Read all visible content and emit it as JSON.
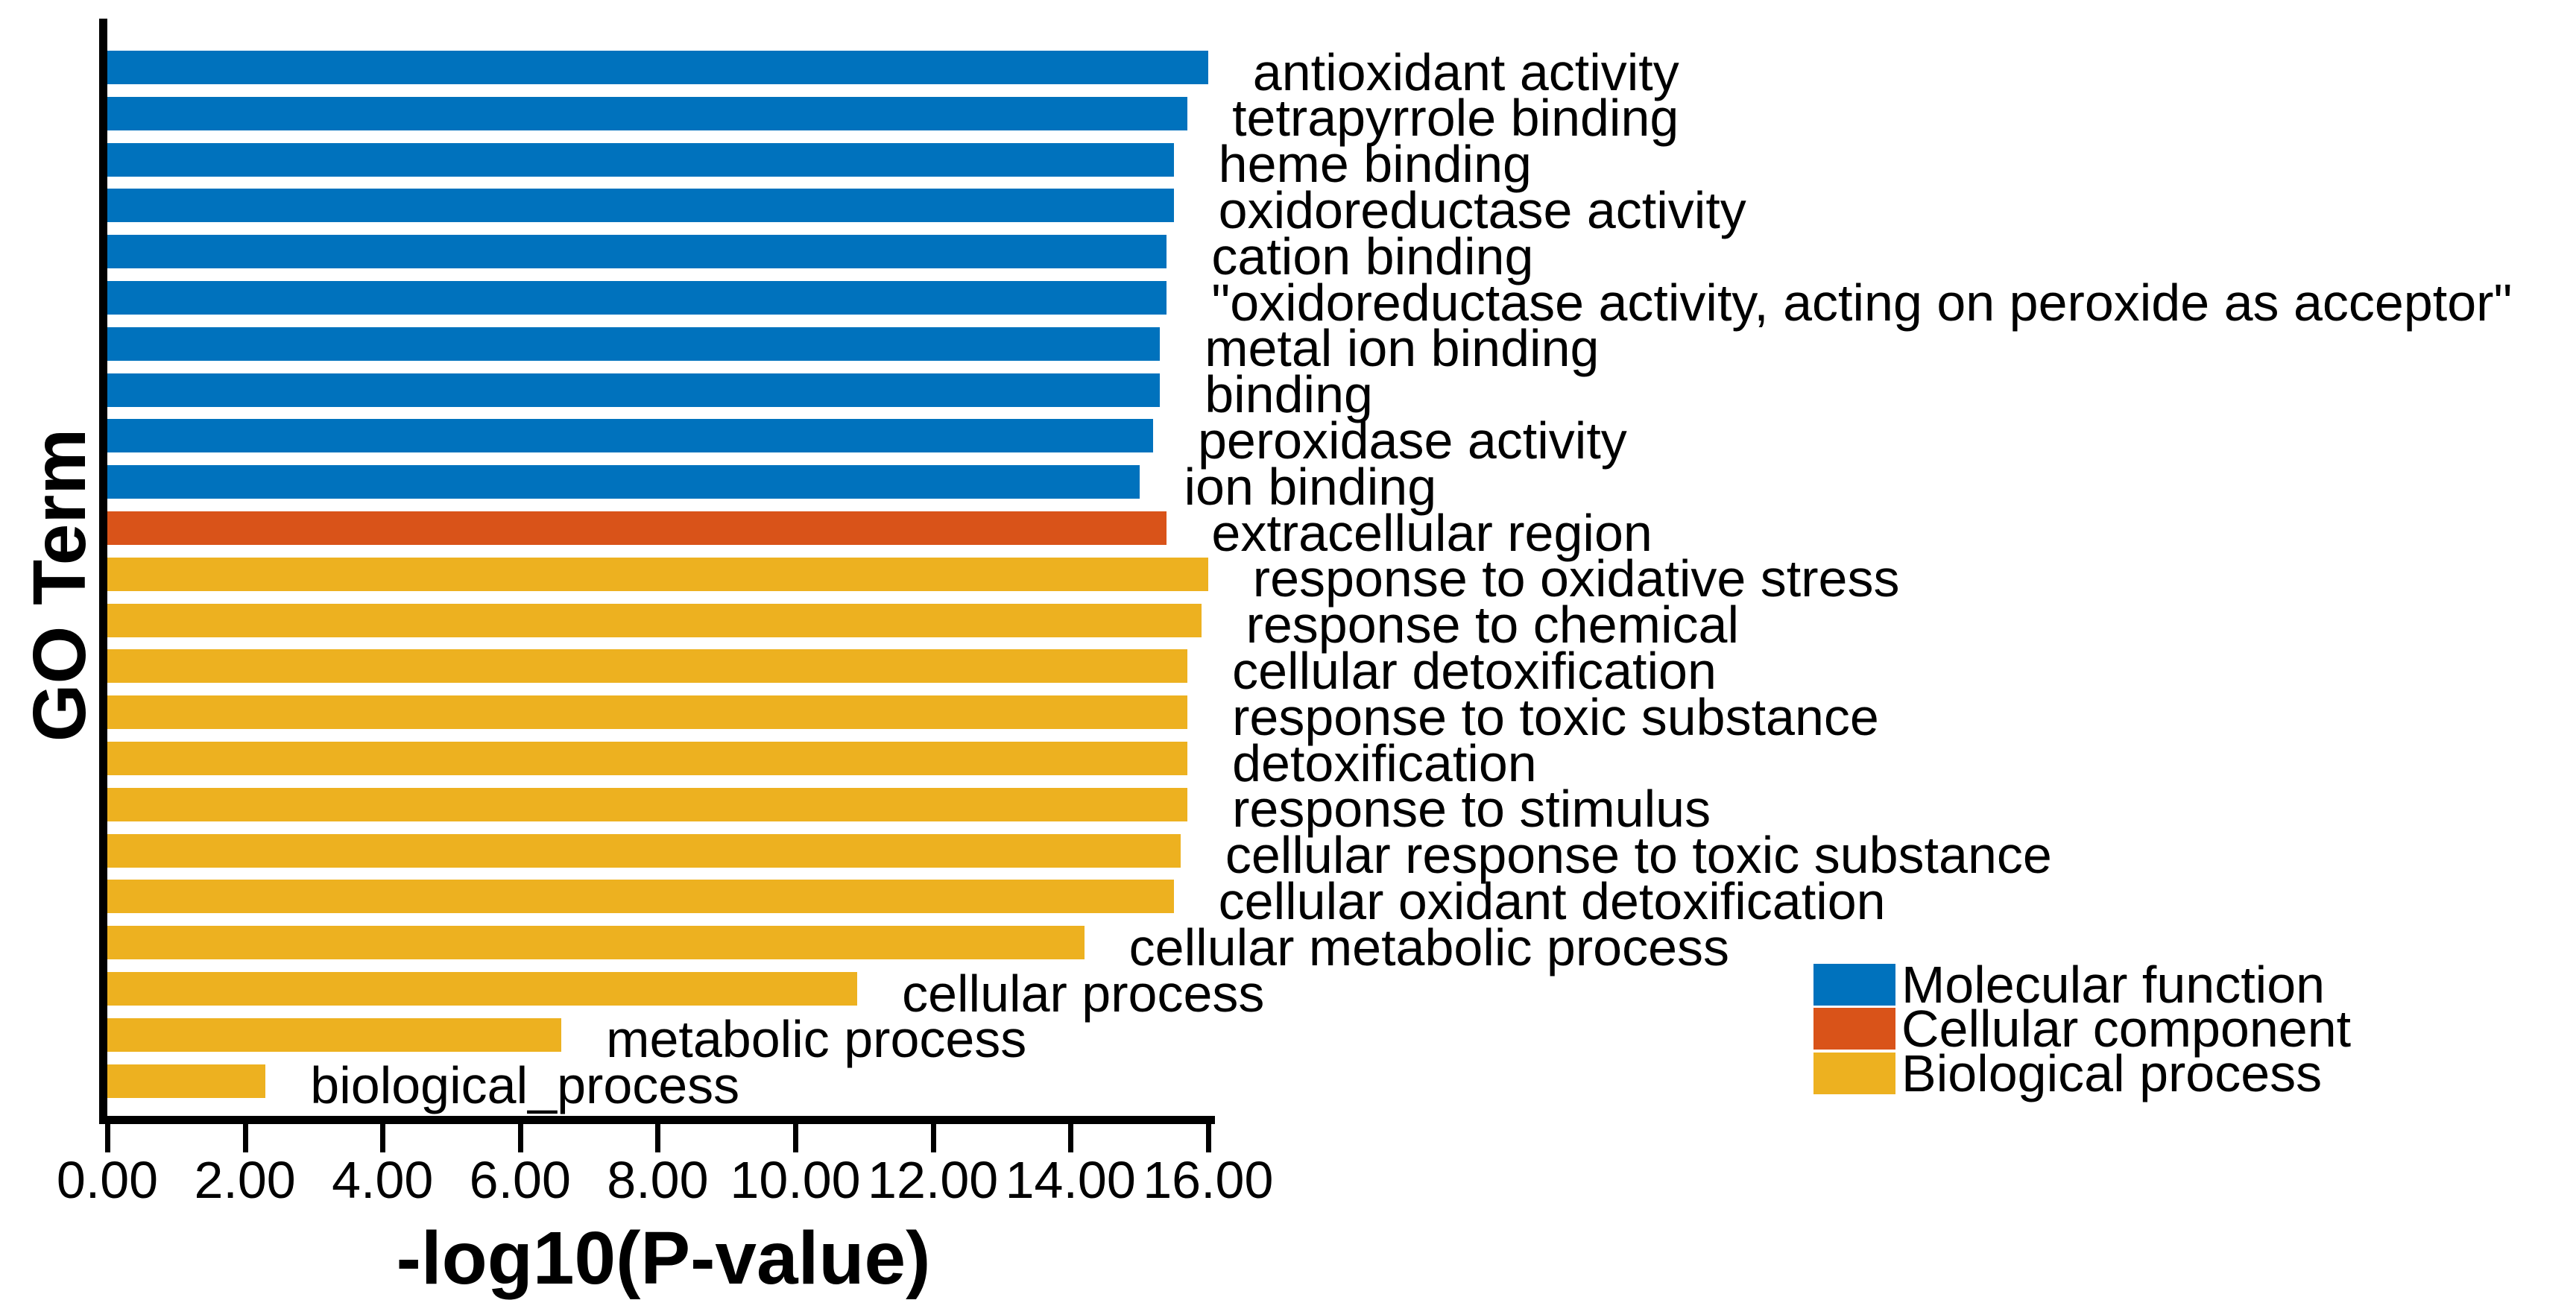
{
  "figure": {
    "x_axis": {
      "label": "-log10(P-value)",
      "min": 0,
      "max": 16,
      "tick_labels": [
        "0.00",
        "2.00",
        "4.00",
        "6.00",
        "8.00",
        "10.00",
        "12.00",
        "14.00",
        "16.00"
      ]
    },
    "y_axis": {
      "label": "GO Term"
    },
    "legend": [
      {
        "label": "Molecular function",
        "color": "#0072BD"
      },
      {
        "label": "Cellular component",
        "color": "#D95319"
      },
      {
        "label": "Biological process",
        "color": "#EDB120"
      }
    ]
  },
  "chart_data": {
    "type": "bar",
    "orientation": "horizontal",
    "title": "",
    "xlabel": "-log10(P-value)",
    "ylabel": "GO Term",
    "xlim": [
      0,
      16
    ],
    "xticks": [
      0,
      2,
      4,
      6,
      8,
      10,
      12,
      14,
      16
    ],
    "grid": false,
    "legend_position": "bottom-right",
    "categories": [
      "antioxidant activity",
      "tetrapyrrole binding",
      "heme binding",
      "oxidoreductase activity",
      "cation binding",
      "\"oxidoreductase activity, acting on peroxide as acceptor\"",
      "metal ion binding",
      "binding",
      "peroxidase activity",
      "ion binding",
      "extracellular region",
      "response to oxidative stress",
      "response to chemical",
      "cellular detoxification",
      "response to toxic substance",
      "detoxification",
      "response to stimulus",
      "cellular response to toxic substance",
      "cellular oxidant detoxification",
      "cellular metabolic process",
      "cellular process",
      "metabolic process",
      "biological_process"
    ],
    "values": [
      16.0,
      15.7,
      15.5,
      15.5,
      15.4,
      15.4,
      15.3,
      15.3,
      15.2,
      15.0,
      15.4,
      16.0,
      15.9,
      15.7,
      15.7,
      15.7,
      15.7,
      15.6,
      15.5,
      14.2,
      10.9,
      6.6,
      2.3
    ],
    "groups": [
      "Molecular function",
      "Molecular function",
      "Molecular function",
      "Molecular function",
      "Molecular function",
      "Molecular function",
      "Molecular function",
      "Molecular function",
      "Molecular function",
      "Molecular function",
      "Cellular component",
      "Biological process",
      "Biological process",
      "Biological process",
      "Biological process",
      "Biological process",
      "Biological process",
      "Biological process",
      "Biological process",
      "Biological process",
      "Biological process",
      "Biological process",
      "Biological process"
    ],
    "group_colors": {
      "Molecular function": "#0072BD",
      "Cellular component": "#D95319",
      "Biological process": "#EDB120"
    }
  }
}
